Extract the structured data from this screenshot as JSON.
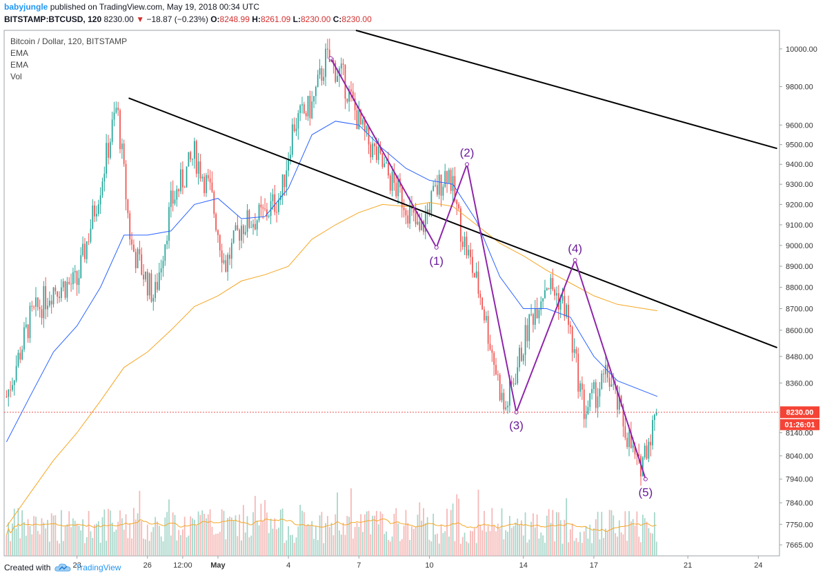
{
  "header": {
    "author": "babyjungle",
    "published_text": "published on TradingView.com, May 19, 2018 00:34 UTC",
    "symbol": "BITSTAMP:BTCUSD, 120",
    "price": "8230.00",
    "change_arrow": "▼",
    "change": "−18.87 (−0.23%)",
    "o_label": "O:",
    "o_value": "8248.99",
    "h_label": "H:",
    "h_value": "8261.09",
    "l_label": "L:",
    "l_value": "8230.00",
    "c_label": "C:",
    "c_value": "8230.00"
  },
  "legend": {
    "title": "Bitcoin / Dollar, 120, BITSTAMP",
    "ema1": "EMA",
    "ema2": "EMA",
    "vol": "Vol"
  },
  "footer": {
    "created_with": "Created with",
    "brand": "TradingView",
    "logo_icon": "tradingview-cloud-icon"
  },
  "colors": {
    "up": "#26a69a",
    "down": "#ef5350",
    "ema_fast": "#2962ff",
    "ema_slow": "#f5a623",
    "wave": "#8e24aa",
    "trendline": "#000000",
    "price_tag": "#f44336"
  },
  "price_tag": {
    "price": "8230.00",
    "countdown": "01:26:01"
  },
  "chart_data": {
    "type": "candlestick",
    "title": "Bitcoin / Dollar, 120, BITSTAMP",
    "y_scale": "log",
    "ylim": [
      7620,
      10100
    ],
    "y_ticks": [
      10000,
      9800,
      9600,
      9500,
      9400,
      9300,
      9200,
      9100,
      9000,
      8900,
      8800,
      8700,
      8600,
      8480,
      8360,
      8230,
      8140,
      8040,
      7940,
      7840,
      7750,
      7665
    ],
    "y_tick_labels": [
      "10000.00",
      "9800.00",
      "9600.00",
      "9500.00",
      "9400.00",
      "9300.00",
      "9200.00",
      "9100.00",
      "9000.00",
      "8900.00",
      "8800.00",
      "8700.00",
      "8600.00",
      "8480.00",
      "8360.00",
      "8230.00",
      "8140.00",
      "8040.00",
      "7940.00",
      "7840.00",
      "7750.00",
      "7665.00"
    ],
    "x_ticks": [
      {
        "label": "23",
        "day": 23
      },
      {
        "label": "26",
        "day": 26
      },
      {
        "label": "12:00",
        "day": 27.5
      },
      {
        "label": "May",
        "day": 29
      },
      {
        "label": "4",
        "day": 32
      },
      {
        "label": "7",
        "day": 35
      },
      {
        "label": "10",
        "day": 38
      },
      {
        "label": "14",
        "day": 42
      },
      {
        "label": "17",
        "day": 45
      },
      {
        "label": "21",
        "day": 49
      },
      {
        "label": "24",
        "day": 52
      }
    ],
    "last_price": 8230,
    "key_prices": [
      {
        "day": 20,
        "price": 8300
      },
      {
        "day": 21,
        "price": 8650
      },
      {
        "day": 22,
        "price": 8800
      },
      {
        "day": 23,
        "price": 8820
      },
      {
        "day": 24,
        "price": 9300
      },
      {
        "day": 24.7,
        "price": 9700
      },
      {
        "day": 25.3,
        "price": 9000
      },
      {
        "day": 26.3,
        "price": 8750
      },
      {
        "day": 27,
        "price": 9200
      },
      {
        "day": 28,
        "price": 9450
      },
      {
        "day": 28.7,
        "price": 9250
      },
      {
        "day": 29.3,
        "price": 8900
      },
      {
        "day": 30,
        "price": 9100
      },
      {
        "day": 31,
        "price": 9150
      },
      {
        "day": 31.7,
        "price": 9250
      },
      {
        "day": 32.2,
        "price": 9600
      },
      {
        "day": 33,
        "price": 9700
      },
      {
        "day": 33.6,
        "price": 9950
      },
      {
        "day": 34.3,
        "price": 9850
      },
      {
        "day": 35.2,
        "price": 9550
      },
      {
        "day": 36.2,
        "price": 9350
      },
      {
        "day": 37,
        "price": 9200
      },
      {
        "day": 37.6,
        "price": 9050
      },
      {
        "day": 38,
        "price": 9200
      },
      {
        "day": 38.8,
        "price": 9380
      },
      {
        "day": 39.4,
        "price": 9050
      },
      {
        "day": 40.2,
        "price": 8750
      },
      {
        "day": 41.2,
        "price": 8230
      },
      {
        "day": 42.3,
        "price": 8650
      },
      {
        "day": 43,
        "price": 8830
      },
      {
        "day": 43.8,
        "price": 8700
      },
      {
        "day": 44.6,
        "price": 8230
      },
      {
        "day": 45.6,
        "price": 8400
      },
      {
        "day": 46.2,
        "price": 8200
      },
      {
        "day": 46.9,
        "price": 7980
      },
      {
        "day": 47.7,
        "price": 8230
      }
    ],
    "ema_fast_points": [
      {
        "day": 20,
        "price": 8100
      },
      {
        "day": 21,
        "price": 8300
      },
      {
        "day": 22,
        "price": 8500
      },
      {
        "day": 23,
        "price": 8620
      },
      {
        "day": 24,
        "price": 8800
      },
      {
        "day": 25,
        "price": 9050
      },
      {
        "day": 26,
        "price": 9050
      },
      {
        "day": 27,
        "price": 9070
      },
      {
        "day": 28,
        "price": 9200
      },
      {
        "day": 29,
        "price": 9230
      },
      {
        "day": 30,
        "price": 9130
      },
      {
        "day": 31,
        "price": 9140
      },
      {
        "day": 32,
        "price": 9280
      },
      {
        "day": 33,
        "price": 9550
      },
      {
        "day": 34,
        "price": 9620
      },
      {
        "day": 35,
        "price": 9600
      },
      {
        "day": 36,
        "price": 9480
      },
      {
        "day": 37,
        "price": 9380
      },
      {
        "day": 38,
        "price": 9320
      },
      {
        "day": 39,
        "price": 9300
      },
      {
        "day": 40,
        "price": 9120
      },
      {
        "day": 41,
        "price": 8850
      },
      {
        "day": 42,
        "price": 8700
      },
      {
        "day": 43,
        "price": 8700
      },
      {
        "day": 44,
        "price": 8660
      },
      {
        "day": 45,
        "price": 8480
      },
      {
        "day": 46,
        "price": 8370
      },
      {
        "day": 47.7,
        "price": 8300
      }
    ],
    "ema_slow_points": [
      {
        "day": 20,
        "price": 7740
      },
      {
        "day": 21,
        "price": 7880
      },
      {
        "day": 22,
        "price": 8020
      },
      {
        "day": 23,
        "price": 8140
      },
      {
        "day": 24,
        "price": 8280
      },
      {
        "day": 25,
        "price": 8430
      },
      {
        "day": 26,
        "price": 8500
      },
      {
        "day": 27,
        "price": 8600
      },
      {
        "day": 28,
        "price": 8710
      },
      {
        "day": 29,
        "price": 8760
      },
      {
        "day": 30,
        "price": 8830
      },
      {
        "day": 31,
        "price": 8860
      },
      {
        "day": 32,
        "price": 8900
      },
      {
        "day": 33,
        "price": 9030
      },
      {
        "day": 34,
        "price": 9100
      },
      {
        "day": 35,
        "price": 9160
      },
      {
        "day": 36,
        "price": 9200
      },
      {
        "day": 37,
        "price": 9190
      },
      {
        "day": 38,
        "price": 9210
      },
      {
        "day": 39,
        "price": 9190
      },
      {
        "day": 40,
        "price": 9100
      },
      {
        "day": 41,
        "price": 9010
      },
      {
        "day": 42,
        "price": 8950
      },
      {
        "day": 43,
        "price": 8880
      },
      {
        "day": 44,
        "price": 8820
      },
      {
        "day": 45,
        "price": 8760
      },
      {
        "day": 46,
        "price": 8720
      },
      {
        "day": 47.7,
        "price": 8690
      }
    ],
    "trendlines": [
      {
        "start": {
          "day": 25.2,
          "price": 9740
        },
        "end": {
          "day": 52.8,
          "price": 8520
        }
      },
      {
        "start": {
          "day": 30.7,
          "price": 10250
        },
        "end": {
          "day": 52.8,
          "price": 9480
        }
      }
    ],
    "wave_points": [
      {
        "label": "",
        "day": 33.8,
        "price": 9950
      },
      {
        "label": "(1)",
        "day": 38.3,
        "price": 8990
      },
      {
        "label": "(2)",
        "day": 39.6,
        "price": 9400
      },
      {
        "label": "(3)",
        "day": 41.7,
        "price": 8230
      },
      {
        "label": "(4)",
        "day": 44.2,
        "price": 8930
      },
      {
        "label": "(5)",
        "day": 47.2,
        "price": 7940
      }
    ]
  }
}
